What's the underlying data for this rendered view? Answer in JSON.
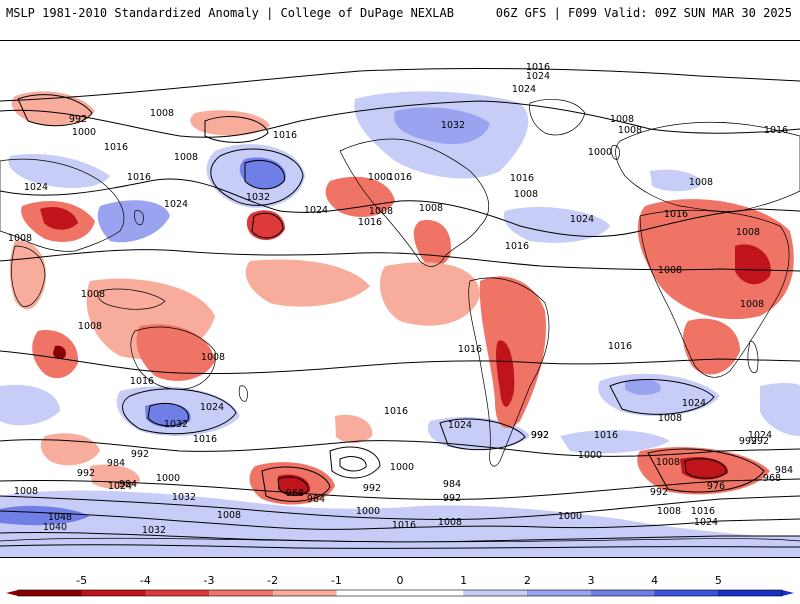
{
  "header": {
    "title_left": "MSLP 1981-2010 Standardized Anomaly | College of DuPage NEXLAB",
    "title_right": "06Z GFS | F099 Valid: 09Z SUN MAR 30 2025"
  },
  "colors": {
    "neg5": "#8b0000",
    "neg4": "#c0141c",
    "neg3": "#de3a3a",
    "neg2": "#ef7466",
    "neg1": "#f8ac9c",
    "pos1": "#c8cdf8",
    "pos2": "#9aa3f0",
    "pos3": "#6f7fe6",
    "pos4": "#3d51dc",
    "pos5": "#1a2ec8",
    "land_outline": "#000000",
    "contour": "#000000"
  },
  "colorbar": {
    "ticks": [
      "-5",
      "-4",
      "-3",
      "-2",
      "-1",
      "0",
      "1",
      "2",
      "3",
      "4",
      "5"
    ]
  },
  "contour_labels": [
    {
      "text": "1016"
    },
    {
      "text": "1024"
    },
    {
      "text": "1024"
    },
    {
      "text": "992"
    },
    {
      "text": "1000"
    },
    {
      "text": "1008"
    },
    {
      "text": "1016"
    },
    {
      "text": "1008"
    },
    {
      "text": "1032"
    },
    {
      "text": "1008"
    },
    {
      "text": "1016"
    },
    {
      "text": "1000"
    },
    {
      "text": "1008"
    },
    {
      "text": "1016"
    },
    {
      "text": "1024"
    },
    {
      "text": "1016"
    },
    {
      "text": "1024"
    },
    {
      "text": "1032"
    },
    {
      "text": "1024"
    },
    {
      "text": "1016"
    },
    {
      "text": "1008"
    },
    {
      "text": "1016"
    },
    {
      "text": "1000"
    },
    {
      "text": "1008"
    },
    {
      "text": "1016"
    },
    {
      "text": "1008"
    },
    {
      "text": "1008"
    },
    {
      "text": "1008"
    },
    {
      "text": "1016"
    },
    {
      "text": "1024"
    },
    {
      "text": "1008"
    },
    {
      "text": "1008"
    },
    {
      "text": "1016"
    },
    {
      "text": "1008"
    },
    {
      "text": "1008"
    },
    {
      "text": "1008"
    },
    {
      "text": "1016"
    },
    {
      "text": "1008"
    },
    {
      "text": "1016"
    },
    {
      "text": "1024"
    },
    {
      "text": "1032"
    },
    {
      "text": "1016"
    },
    {
      "text": "992"
    },
    {
      "text": "1016"
    },
    {
      "text": "1024"
    },
    {
      "text": "1016"
    },
    {
      "text": "1008"
    },
    {
      "text": "992"
    },
    {
      "text": "1016"
    },
    {
      "text": "1008"
    },
    {
      "text": "1024"
    },
    {
      "text": "1000"
    },
    {
      "text": "992"
    },
    {
      "text": "984"
    },
    {
      "text": "1000"
    },
    {
      "text": "1024"
    },
    {
      "text": "984"
    },
    {
      "text": "992"
    },
    {
      "text": "1008"
    },
    {
      "text": "1032"
    },
    {
      "text": "1008"
    },
    {
      "text": "1048"
    },
    {
      "text": "1040"
    },
    {
      "text": "1032"
    },
    {
      "text": "968"
    },
    {
      "text": "984"
    },
    {
      "text": "1000"
    },
    {
      "text": "992"
    },
    {
      "text": "984"
    },
    {
      "text": "992"
    },
    {
      "text": "1000"
    },
    {
      "text": "1016"
    },
    {
      "text": "1008"
    },
    {
      "text": "1000"
    },
    {
      "text": "1024"
    },
    {
      "text": "992"
    },
    {
      "text": "1008"
    },
    {
      "text": "1016"
    },
    {
      "text": "1024"
    },
    {
      "text": "976"
    },
    {
      "text": "968"
    },
    {
      "text": "984"
    },
    {
      "text": "992"
    },
    {
      "text": "992"
    }
  ]
}
